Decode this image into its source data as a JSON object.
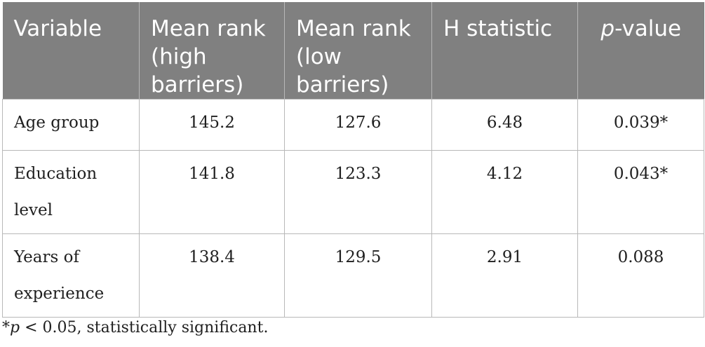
{
  "table": {
    "headers": {
      "variable": "Variable",
      "mean_rank_high": "Mean rank (high barriers)",
      "mean_rank_low": "Mean rank (low barriers)",
      "h_statistic": "H statistic",
      "p_value_italic": "p",
      "p_value_rest": "-value"
    },
    "rows": [
      {
        "variable": "Age group",
        "high": "145.2",
        "low": "127.6",
        "h": "6.48",
        "p": "0.039*"
      },
      {
        "variable": "Education level",
        "high": "141.8",
        "low": "123.3",
        "h": "4.12",
        "p": "0.043*"
      },
      {
        "variable": "Years of experience",
        "high": "138.4",
        "low": "129.5",
        "h": "2.91",
        "p": "0.088"
      }
    ]
  },
  "footnote": {
    "star": "*",
    "p_italic": "p",
    "rest": " < 0.05, statistically significant."
  }
}
